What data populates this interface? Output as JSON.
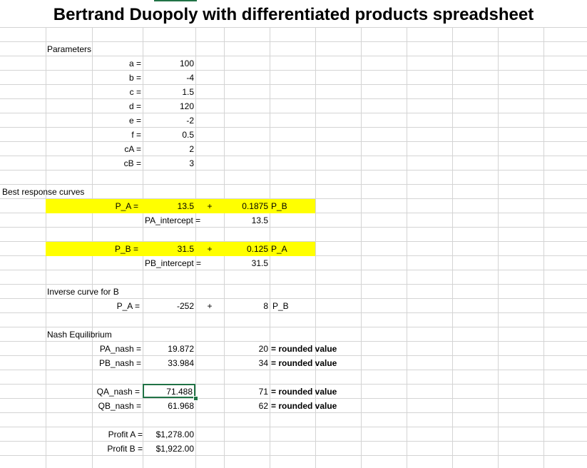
{
  "title": "Bertrand Duopoly with differentiated products spreadsheet",
  "parameters": {
    "header": "Parameters",
    "rows": [
      {
        "label": "a =",
        "value": "100"
      },
      {
        "label": "b =",
        "value": "-4"
      },
      {
        "label": "c =",
        "value": "1.5"
      },
      {
        "label": "d =",
        "value": "120"
      },
      {
        "label": "e =",
        "value": "-2"
      },
      {
        "label": "f =",
        "value": "0.5"
      },
      {
        "label": "cA =",
        "value": "2"
      },
      {
        "label": "cB =",
        "value": "3"
      }
    ]
  },
  "best_response": {
    "header": "Best response curves",
    "pa": {
      "label": "P_A =",
      "constant": "13.5",
      "plus": "+",
      "coef": "0.1875",
      "var": "P_B"
    },
    "pa_intercept": {
      "label": "PA_intercept =",
      "value": "13.5"
    },
    "pb": {
      "label": "P_B =",
      "constant": "31.5",
      "plus": "+",
      "coef": "0.125",
      "var": "P_A"
    },
    "pb_intercept": {
      "label": "PB_intercept =",
      "value": "31.5"
    }
  },
  "inverse": {
    "header": "Inverse curve for B",
    "label": "P_A =",
    "constant": "-252",
    "plus": "+",
    "coef": "8",
    "var": "P_B"
  },
  "nash": {
    "header": "Nash Equilibrium",
    "rows": [
      {
        "label": "PA_nash =",
        "value": "19.872",
        "rounded": "20",
        "note": "= rounded value"
      },
      {
        "label": "PB_nash =",
        "value": "33.984",
        "rounded": "34",
        "note": "= rounded value"
      },
      {
        "label": "QA_nash =",
        "value": "71.488",
        "rounded": "71",
        "note": "= rounded value"
      },
      {
        "label": "QB_nash =",
        "value": "61.968",
        "rounded": "62",
        "note": "= rounded value"
      }
    ]
  },
  "profit": {
    "rows": [
      {
        "label": "Profit A =",
        "value": "$1,278.00"
      },
      {
        "label": "Profit B =",
        "value": "$1,922.00"
      }
    ]
  }
}
